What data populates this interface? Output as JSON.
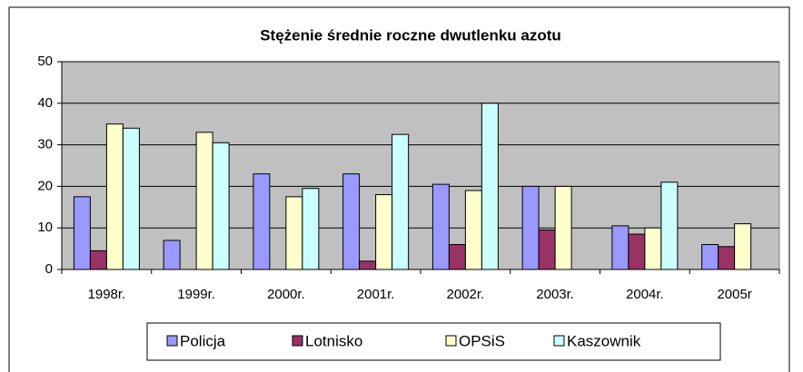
{
  "chart_data": {
    "type": "bar",
    "title": "Stężenie średnie roczne dwutlenku azotu",
    "categories": [
      "1998r.",
      "1999r.",
      "2000r.",
      "2001r.",
      "2002r.",
      "2003r.",
      "2004r.",
      "2005r"
    ],
    "series": [
      {
        "name": "Policja",
        "color": "#9999ff",
        "values": [
          17.5,
          7,
          23,
          23,
          20.5,
          20,
          10.5,
          6
        ]
      },
      {
        "name": "Lotnisko",
        "color": "#993366",
        "values": [
          4.5,
          null,
          null,
          2,
          6,
          9.5,
          8.5,
          5.5
        ]
      },
      {
        "name": "OPSiS",
        "color": "#ffffcc",
        "values": [
          35,
          33,
          17.5,
          18,
          19,
          20,
          10,
          11
        ]
      },
      {
        "name": "Kaszownik",
        "color": "#ccffff",
        "values": [
          34,
          30.5,
          19.5,
          32.5,
          40,
          null,
          21,
          null
        ]
      }
    ],
    "ylim": [
      0,
      50
    ],
    "yticks": [
      0,
      10,
      20,
      30,
      40,
      50
    ],
    "grid": true,
    "legend": "bottom"
  }
}
